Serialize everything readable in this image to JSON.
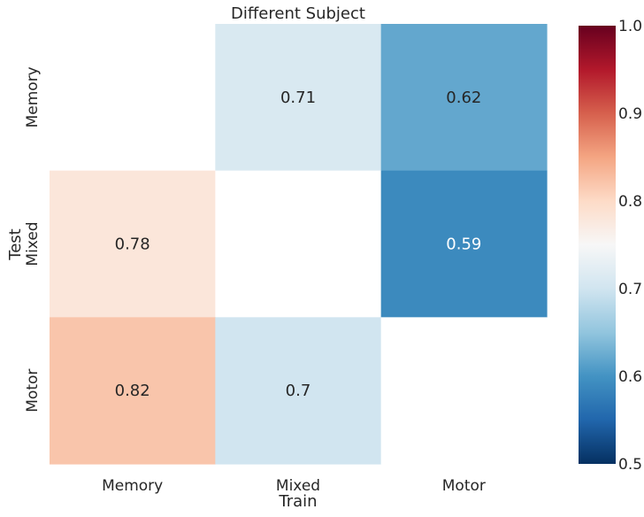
{
  "chart_data": {
    "type": "heatmap",
    "title": "Different Subject",
    "xlabel": "Train",
    "ylabel": "Test",
    "x_categories": [
      "Memory",
      "Mixed",
      "Motor"
    ],
    "y_categories": [
      "Memory",
      "Mixed",
      "Motor"
    ],
    "values": [
      [
        null,
        0.71,
        0.62
      ],
      [
        0.78,
        null,
        0.59
      ],
      [
        0.82,
        0.7,
        null
      ]
    ],
    "labels": [
      [
        null,
        "0.71",
        "0.62"
      ],
      [
        "0.78",
        null,
        "0.59"
      ],
      [
        "0.82",
        "0.7",
        null
      ]
    ],
    "colormap": "RdBu_r",
    "vmin": 0.5,
    "vmax": 1.0,
    "colorbar_ticks": [
      "0.5",
      "0.6",
      "0.7",
      "0.8",
      "0.9",
      "1.0"
    ],
    "missing_color": "#ffffff",
    "grid": false
  }
}
